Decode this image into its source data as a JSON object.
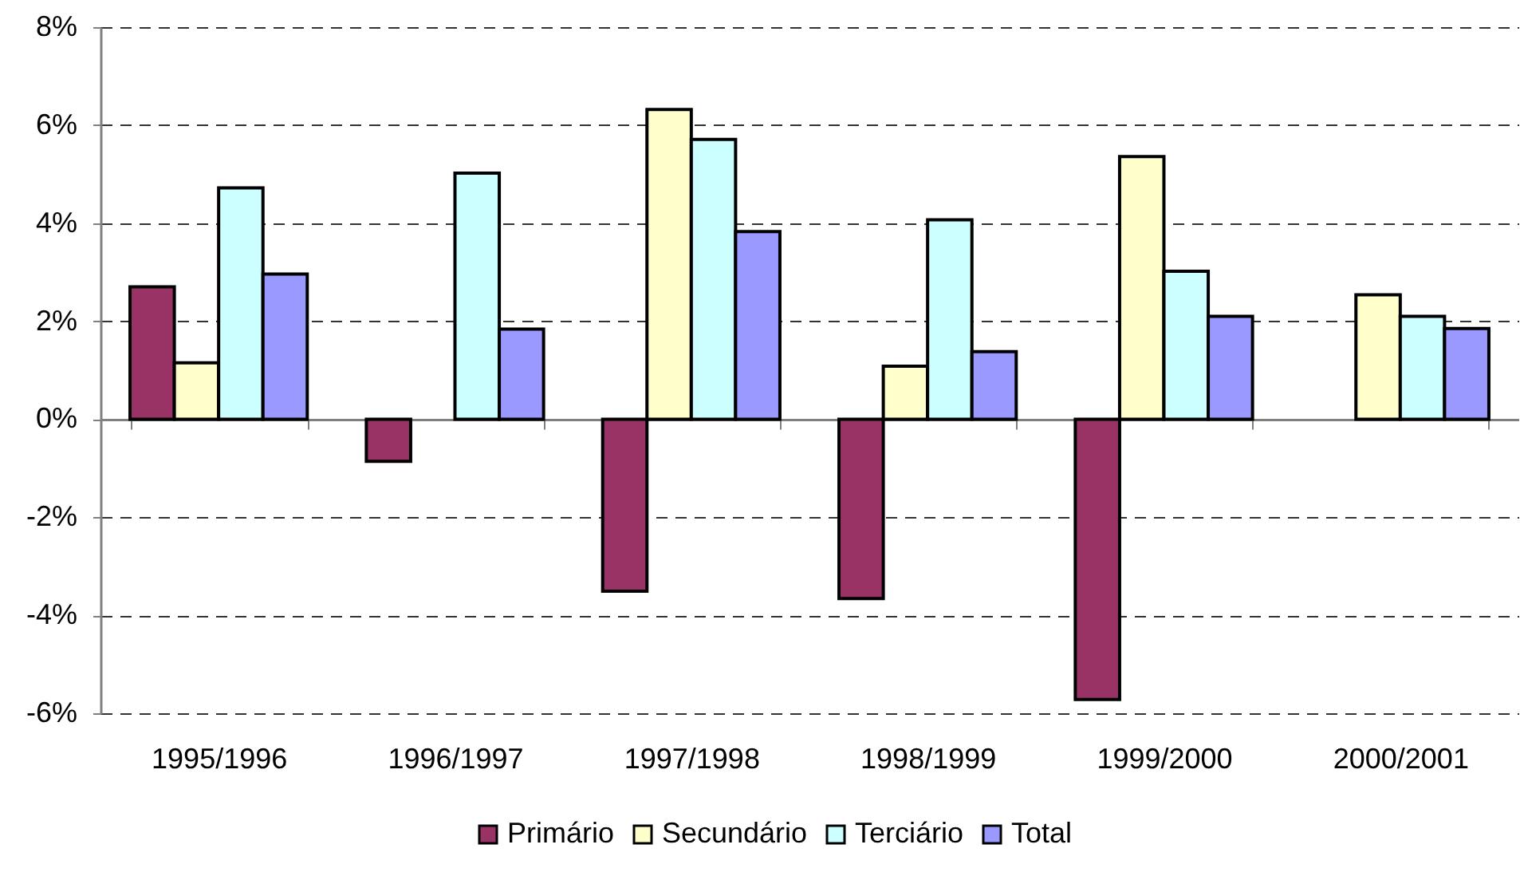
{
  "chart_data": {
    "type": "bar",
    "categories": [
      "1995/1996",
      "1996/1997",
      "1997/1998",
      "1998/1999",
      "1999/2000",
      "2000/2001"
    ],
    "series": [
      {
        "name": "Primário",
        "color": "#993366",
        "values": [
          2.7,
          -0.86,
          -3.51,
          -3.66,
          -5.72,
          null
        ]
      },
      {
        "name": "Secundário",
        "color": "#ffffcc",
        "values": [
          1.15,
          null,
          6.32,
          1.08,
          5.36,
          2.54
        ]
      },
      {
        "name": "Terciário",
        "color": "#ccffff",
        "values": [
          4.72,
          5.02,
          5.71,
          4.07,
          3.02,
          2.1
        ]
      },
      {
        "name": "Total",
        "color": "#9999ff",
        "values": [
          2.96,
          1.84,
          3.83,
          1.38,
          2.1,
          1.85
        ]
      }
    ],
    "ylim": [
      -6,
      8
    ],
    "yticks": [
      {
        "value": -6,
        "label": "-6%"
      },
      {
        "value": -4,
        "label": "-4%"
      },
      {
        "value": -2,
        "label": "-2%"
      },
      {
        "value": 0,
        "label": "0%"
      },
      {
        "value": 2,
        "label": "2%"
      },
      {
        "value": 4,
        "label": "4%"
      },
      {
        "value": 6,
        "label": "6%"
      },
      {
        "value": 8,
        "label": "8%"
      }
    ],
    "grid": "y",
    "legend": "bottom"
  }
}
